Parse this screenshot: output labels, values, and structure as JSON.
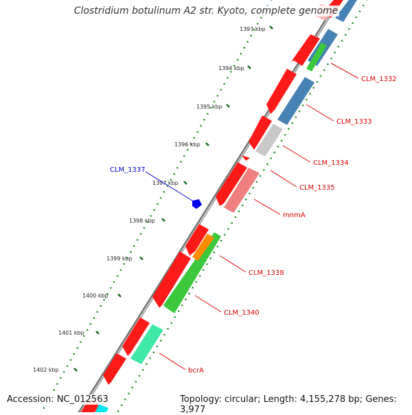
{
  "title": "Clostridium botulinum A2 str. Kyoto, complete genome",
  "footer": {
    "accession": "Accession: NC_012563",
    "summary": "Topology: circular; Length: 4,155,278 bp; Genes: 3,977"
  },
  "colors": {
    "backbone": "#888888",
    "cds_forward": "#ff0000",
    "tick": "#2a7a2a",
    "label_red": "#dd0000",
    "label_blue": "#0000cc"
  },
  "ticks": [
    {
      "label": "1393 kbp"
    },
    {
      "label": "1394 kbp"
    },
    {
      "label": "1395 kbp"
    },
    {
      "label": "1396 kbp"
    },
    {
      "label": "1397 kbp"
    },
    {
      "label": "1398 kbp"
    },
    {
      "label": "1399 kbp"
    },
    {
      "label": "1400 kbp"
    },
    {
      "label": "1401 kbp"
    },
    {
      "label": "1402 kbp"
    }
  ],
  "gene_labels": [
    {
      "name": "CLM_1332",
      "color": "#dd0000"
    },
    {
      "name": "CLM_1333",
      "color": "#dd0000"
    },
    {
      "name": "CLM_1334",
      "color": "#dd0000"
    },
    {
      "name": "CLM_1335",
      "color": "#dd0000"
    },
    {
      "name": "mnmA",
      "color": "#dd0000"
    },
    {
      "name": "CLM_1338",
      "color": "#dd0000"
    },
    {
      "name": "CLM_1340",
      "color": "#dd0000"
    },
    {
      "name": "bcrA",
      "color": "#dd0000"
    },
    {
      "name": "CLM_1337",
      "color": "#0000cc"
    }
  ]
}
